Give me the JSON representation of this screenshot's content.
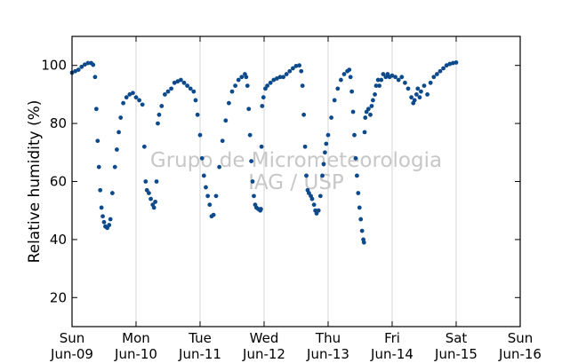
{
  "chart_data": {
    "type": "scatter",
    "ylabel": "Relative humidity (%)",
    "xlabel": "",
    "ylim": [
      10,
      110
    ],
    "xlim": [
      0,
      7
    ],
    "yticks": [
      20,
      40,
      60,
      80,
      100
    ],
    "xticks": [
      {
        "day": "Sun",
        "date": "Jun-09"
      },
      {
        "day": "Mon",
        "date": "Jun-10"
      },
      {
        "day": "Tue",
        "date": "Jun-11"
      },
      {
        "day": "Wed",
        "date": "Jun-12"
      },
      {
        "day": "Thu",
        "date": "Jun-13"
      },
      {
        "day": "Fri",
        "date": "Jun-14"
      },
      {
        "day": "Sat",
        "date": "Jun-15"
      },
      {
        "day": "Sun",
        "date": "Jun-16"
      }
    ],
    "grid": "vertical",
    "watermark": [
      "Grupo de Micrometeorologia",
      "IAG / USP"
    ],
    "series_color": "#0d4a8c",
    "series": [
      {
        "points": [
          [
            0.0,
            97.5
          ],
          [
            0.05,
            98.0
          ],
          [
            0.1,
            98.5
          ],
          [
            0.15,
            99.5
          ],
          [
            0.2,
            100.3
          ],
          [
            0.25,
            100.8
          ],
          [
            0.3,
            100.8
          ],
          [
            0.33,
            100.2
          ],
          [
            0.36,
            96
          ],
          [
            0.38,
            85
          ],
          [
            0.4,
            74
          ],
          [
            0.42,
            65
          ],
          [
            0.44,
            57
          ],
          [
            0.46,
            51
          ],
          [
            0.48,
            48
          ],
          [
            0.5,
            46
          ],
          [
            0.52,
            44.5
          ],
          [
            0.55,
            44
          ],
          [
            0.58,
            45
          ],
          [
            0.6,
            47
          ],
          [
            0.63,
            56
          ],
          [
            0.67,
            65
          ],
          [
            0.7,
            71
          ],
          [
            0.73,
            77
          ],
          [
            0.76,
            82
          ],
          [
            0.8,
            87
          ],
          [
            0.85,
            89
          ],
          [
            0.9,
            90
          ],
          [
            0.95,
            90.5
          ],
          [
            1.0,
            89
          ],
          [
            1.05,
            88
          ],
          [
            1.1,
            86.5
          ],
          [
            1.13,
            72
          ],
          [
            1.15,
            60
          ],
          [
            1.17,
            57
          ],
          [
            1.2,
            56
          ],
          [
            1.23,
            54
          ],
          [
            1.26,
            52
          ],
          [
            1.28,
            51
          ],
          [
            1.3,
            53
          ],
          [
            1.32,
            60
          ],
          [
            1.34,
            80
          ],
          [
            1.36,
            83
          ],
          [
            1.4,
            86
          ],
          [
            1.45,
            90
          ],
          [
            1.5,
            91
          ],
          [
            1.55,
            92
          ],
          [
            1.6,
            94
          ],
          [
            1.65,
            94.5
          ],
          [
            1.7,
            95
          ],
          [
            1.75,
            94
          ],
          [
            1.8,
            93
          ],
          [
            1.85,
            92
          ],
          [
            1.9,
            91
          ],
          [
            1.93,
            88
          ],
          [
            1.96,
            83
          ],
          [
            2.0,
            76
          ],
          [
            2.03,
            68
          ],
          [
            2.06,
            62
          ],
          [
            2.09,
            58
          ],
          [
            2.12,
            55
          ],
          [
            2.15,
            52
          ],
          [
            2.18,
            48
          ],
          [
            2.21,
            48.5
          ],
          [
            2.25,
            55
          ],
          [
            2.3,
            65
          ],
          [
            2.35,
            74
          ],
          [
            2.4,
            81
          ],
          [
            2.45,
            87
          ],
          [
            2.5,
            91
          ],
          [
            2.55,
            93
          ],
          [
            2.6,
            95
          ],
          [
            2.65,
            96
          ],
          [
            2.7,
            97
          ],
          [
            2.72,
            96
          ],
          [
            2.74,
            93
          ],
          [
            2.76,
            85
          ],
          [
            2.78,
            76
          ],
          [
            2.8,
            67
          ],
          [
            2.82,
            60
          ],
          [
            2.84,
            55
          ],
          [
            2.86,
            52
          ],
          [
            2.88,
            51
          ],
          [
            2.91,
            50.5
          ],
          [
            2.94,
            50
          ],
          [
            2.95,
            50.5
          ],
          [
            2.96,
            72
          ],
          [
            2.97,
            86
          ],
          [
            2.99,
            89
          ],
          [
            3.02,
            92
          ],
          [
            3.05,
            93
          ],
          [
            3.1,
            94
          ],
          [
            3.15,
            95
          ],
          [
            3.2,
            95.5
          ],
          [
            3.25,
            96
          ],
          [
            3.3,
            96
          ],
          [
            3.35,
            97
          ],
          [
            3.4,
            98
          ],
          [
            3.45,
            99
          ],
          [
            3.5,
            99.8
          ],
          [
            3.55,
            100
          ],
          [
            3.58,
            98
          ],
          [
            3.6,
            93
          ],
          [
            3.62,
            83
          ],
          [
            3.64,
            72
          ],
          [
            3.66,
            62
          ],
          [
            3.68,
            57
          ],
          [
            3.7,
            56
          ],
          [
            3.73,
            55
          ],
          [
            3.75,
            54
          ],
          [
            3.78,
            52
          ],
          [
            3.8,
            50
          ],
          [
            3.82,
            49
          ],
          [
            3.85,
            50
          ],
          [
            3.88,
            55
          ],
          [
            3.91,
            62
          ],
          [
            3.93,
            66
          ],
          [
            3.95,
            70
          ],
          [
            3.97,
            73
          ],
          [
            4.0,
            76
          ],
          [
            4.05,
            82
          ],
          [
            4.1,
            88
          ],
          [
            4.15,
            92
          ],
          [
            4.2,
            95
          ],
          [
            4.25,
            97
          ],
          [
            4.3,
            98
          ],
          [
            4.33,
            98.5
          ],
          [
            4.35,
            96
          ],
          [
            4.37,
            91
          ],
          [
            4.39,
            84
          ],
          [
            4.41,
            76
          ],
          [
            4.43,
            68
          ],
          [
            4.45,
            62
          ],
          [
            4.47,
            56
          ],
          [
            4.49,
            51
          ],
          [
            4.51,
            47
          ],
          [
            4.53,
            43
          ],
          [
            4.55,
            40
          ],
          [
            4.56,
            39
          ],
          [
            4.57,
            77
          ],
          [
            4.58,
            82
          ],
          [
            4.6,
            84
          ],
          [
            4.63,
            85
          ],
          [
            4.66,
            83
          ],
          [
            4.68,
            86
          ],
          [
            4.7,
            88
          ],
          [
            4.73,
            90
          ],
          [
            4.75,
            93
          ],
          [
            4.78,
            95
          ],
          [
            4.8,
            93
          ],
          [
            4.83,
            95
          ],
          [
            4.86,
            97
          ],
          [
            4.9,
            96
          ],
          [
            4.93,
            97
          ],
          [
            4.96,
            96
          ],
          [
            5.0,
            96.5
          ],
          [
            5.05,
            96
          ],
          [
            5.1,
            95
          ],
          [
            5.15,
            96
          ],
          [
            5.2,
            94
          ],
          [
            5.25,
            92
          ],
          [
            5.3,
            89
          ],
          [
            5.33,
            87
          ],
          [
            5.35,
            88
          ],
          [
            5.38,
            90
          ],
          [
            5.4,
            92
          ],
          [
            5.43,
            89
          ],
          [
            5.45,
            91
          ],
          [
            5.5,
            93
          ],
          [
            5.55,
            90
          ],
          [
            5.6,
            94
          ],
          [
            5.65,
            96
          ],
          [
            5.7,
            97
          ],
          [
            5.75,
            98
          ],
          [
            5.8,
            99
          ],
          [
            5.85,
            100
          ],
          [
            5.9,
            100.5
          ],
          [
            5.95,
            100.8
          ],
          [
            6.0,
            101
          ]
        ]
      }
    ]
  }
}
